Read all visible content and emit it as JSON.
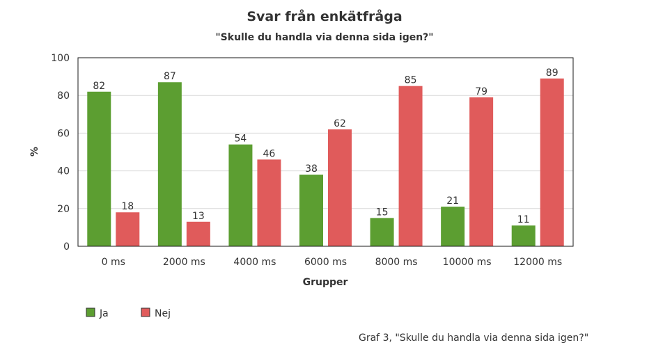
{
  "chart_data": {
    "type": "bar",
    "title": "Svar från enkätfråga",
    "subtitle": "\"Skulle du handla via denna sida igen?\"",
    "xlabel": "Grupper",
    "ylabel": "%",
    "categories": [
      "0 ms",
      "2000 ms",
      "4000 ms",
      "6000 ms",
      "8000 ms",
      "10000 ms",
      "12000 ms"
    ],
    "series": [
      {
        "name": "Ja",
        "color": "#5c9e31",
        "values": [
          82,
          87,
          54,
          38,
          15,
          21,
          11
        ]
      },
      {
        "name": "Nej",
        "color": "#e05b5b",
        "values": [
          18,
          13,
          46,
          62,
          85,
          79,
          89
        ]
      }
    ],
    "ylim": [
      0,
      100
    ],
    "yticks": [
      0,
      20,
      40,
      60,
      80,
      100
    ],
    "grid": true,
    "legend_position": "bottom-left"
  },
  "caption": "Graf 3, \"Skulle du handla via denna sida igen?\""
}
